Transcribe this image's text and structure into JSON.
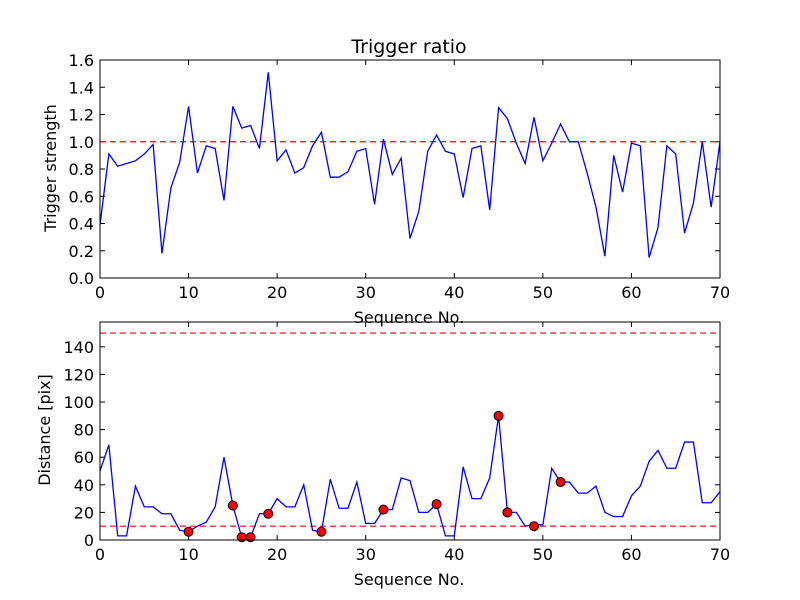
{
  "chart_data": [
    {
      "type": "line",
      "title": "Trigger ratio",
      "xlabel": "Sequence No.",
      "ylabel": "Trigger strength",
      "xlim": [
        0,
        70
      ],
      "ylim": [
        0,
        1.6
      ],
      "xticks": [
        0,
        10,
        20,
        30,
        40,
        50,
        60,
        70
      ],
      "yticks": [
        0.0,
        0.2,
        0.4,
        0.6,
        0.8,
        1.0,
        1.2,
        1.4,
        1.6
      ],
      "yticklabels": [
        "0.0",
        "0.2",
        "0.4",
        "0.6",
        "0.8",
        "1.0",
        "1.2",
        "1.4",
        "1.6"
      ],
      "grid": false,
      "series": [
        {
          "color": "#0000ff",
          "x": [
            0,
            1,
            2,
            3,
            4,
            5,
            6,
            7,
            8,
            9,
            10,
            11,
            12,
            13,
            14,
            15,
            16,
            17,
            18,
            19,
            20,
            21,
            22,
            23,
            24,
            25,
            26,
            27,
            28,
            29,
            30,
            31,
            32,
            33,
            34,
            35,
            36,
            37,
            38,
            39,
            40,
            41,
            42,
            43,
            44,
            45,
            46,
            47,
            48,
            49,
            50,
            51,
            52,
            53,
            54,
            55,
            56,
            57,
            58,
            59,
            60,
            61,
            62,
            63,
            64,
            65,
            66,
            67,
            68,
            69,
            70
          ],
          "values": [
            0.39,
            0.91,
            0.82,
            0.84,
            0.86,
            0.91,
            0.98,
            0.18,
            0.66,
            0.85,
            1.26,
            0.77,
            0.97,
            0.95,
            0.57,
            1.26,
            1.1,
            1.12,
            0.95,
            1.51,
            0.86,
            0.94,
            0.77,
            0.81,
            0.97,
            1.07,
            0.74,
            0.74,
            0.78,
            0.93,
            0.95,
            0.54,
            1.02,
            0.76,
            0.88,
            0.29,
            0.49,
            0.93,
            1.05,
            0.93,
            0.91,
            0.59,
            0.95,
            0.97,
            0.5,
            1.25,
            1.17,
            0.99,
            0.84,
            1.18,
            0.86,
            0.99,
            1.13,
            1.0,
            1.0,
            0.77,
            0.52,
            0.16,
            0.9,
            0.63,
            0.99,
            0.97,
            0.15,
            0.37,
            0.97,
            0.91,
            0.33,
            0.55,
            1.0,
            0.52,
            1.0
          ]
        }
      ],
      "hlines": [
        {
          "y": 1.0,
          "color": "#ff0000",
          "style": "dashed"
        }
      ]
    },
    {
      "type": "line",
      "title": "",
      "xlabel": "Sequence No.",
      "ylabel": "Distance [pix]",
      "xlim": [
        0,
        70
      ],
      "ylim": [
        0,
        158
      ],
      "xticks": [
        0,
        10,
        20,
        30,
        40,
        50,
        60,
        70
      ],
      "yticks": [
        0,
        20,
        40,
        60,
        80,
        100,
        120,
        140
      ],
      "yticklabels": [
        "0",
        "20",
        "40",
        "60",
        "80",
        "100",
        "120",
        "140"
      ],
      "grid": false,
      "series": [
        {
          "color": "#0000ff",
          "x": [
            0,
            1,
            2,
            3,
            4,
            5,
            6,
            7,
            8,
            9,
            10,
            11,
            12,
            13,
            14,
            15,
            16,
            17,
            18,
            19,
            20,
            21,
            22,
            23,
            24,
            25,
            26,
            27,
            28,
            29,
            30,
            31,
            32,
            33,
            34,
            35,
            36,
            37,
            38,
            39,
            40,
            41,
            42,
            43,
            44,
            45,
            46,
            47,
            48,
            49,
            50,
            51,
            52,
            53,
            54,
            55,
            56,
            57,
            58,
            59,
            60,
            61,
            62,
            63,
            64,
            65,
            66,
            67,
            68,
            69,
            70
          ],
          "values": [
            50,
            69,
            3,
            3,
            39,
            24,
            24,
            19,
            19,
            7,
            6,
            10,
            13,
            24,
            60,
            25,
            2,
            2,
            19,
            19,
            30,
            24,
            24,
            40,
            7,
            6,
            44,
            23,
            23,
            42,
            12,
            12,
            22,
            22,
            45,
            43,
            20,
            20,
            26,
            3,
            3,
            53,
            30,
            30,
            45,
            90,
            20,
            20,
            10,
            11,
            11,
            52,
            42,
            42,
            34,
            34,
            39,
            20,
            17,
            17,
            32,
            39,
            57,
            65,
            52,
            52,
            71,
            71,
            27,
            27,
            35
          ]
        },
        {
          "color": "#ff0000",
          "marker": "circle",
          "x": [
            10,
            15,
            16,
            17,
            19,
            25,
            32,
            38,
            45,
            46,
            49,
            52
          ],
          "values": [
            6,
            25,
            2,
            2,
            19,
            6,
            22,
            26,
            90,
            20,
            10,
            42
          ]
        }
      ],
      "hlines": [
        {
          "y": 150,
          "color": "#ff0000",
          "style": "dashed"
        },
        {
          "y": 10,
          "color": "#ff0000",
          "style": "dashed"
        }
      ]
    }
  ]
}
